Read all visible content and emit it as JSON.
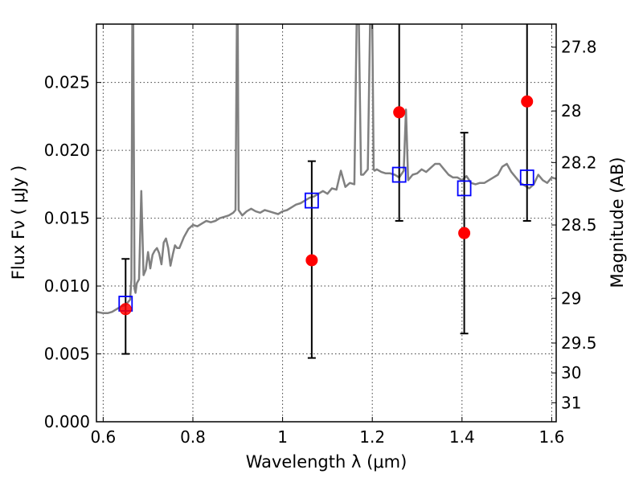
{
  "chart_data": {
    "type": "scatter",
    "xlabel": "Wavelength  λ (μm)",
    "ylabel": "Flux  Fν  ( μJy )",
    "ylabel_right": "Magnitude (AB)",
    "xlim": [
      0.585,
      1.61
    ],
    "ylim": [
      0.0,
      0.0293
    ],
    "grid": true,
    "x_ticks": [
      0.6,
      0.8,
      1.0,
      1.2,
      1.4,
      1.6
    ],
    "x_tick_labels": [
      "0.6",
      "0.8",
      "1",
      "1.2",
      "1.4",
      "1.6"
    ],
    "y_ticks": [
      0.0,
      0.005,
      0.01,
      0.015,
      0.02,
      0.025
    ],
    "y_tick_labels": [
      "0.000",
      "0.005",
      "0.010",
      "0.015",
      "0.020",
      "0.025"
    ],
    "right_ticks": [
      {
        "label": "27.8",
        "flux": 0.0276
      },
      {
        "label": "28",
        "flux": 0.0229
      },
      {
        "label": "28.2",
        "flux": 0.0191
      },
      {
        "label": "28.5",
        "flux": 0.0145
      },
      {
        "label": "29",
        "flux": 0.0091
      },
      {
        "label": "29.5",
        "flux": 0.0058
      },
      {
        "label": "30",
        "flux": 0.0036
      },
      {
        "label": "31",
        "flux": 0.0014
      }
    ],
    "series": [
      {
        "kind": "spectrum-line",
        "color": "#808080",
        "x": [
          0.585,
          0.6,
          0.61,
          0.62,
          0.63,
          0.64,
          0.65,
          0.655,
          0.66,
          0.663,
          0.665,
          0.667,
          0.67,
          0.672,
          0.675,
          0.68,
          0.685,
          0.69,
          0.695,
          0.7,
          0.705,
          0.71,
          0.715,
          0.72,
          0.725,
          0.73,
          0.735,
          0.74,
          0.745,
          0.75,
          0.755,
          0.76,
          0.765,
          0.77,
          0.78,
          0.79,
          0.8,
          0.81,
          0.82,
          0.83,
          0.84,
          0.85,
          0.86,
          0.87,
          0.88,
          0.89,
          0.895,
          0.898,
          0.9,
          0.902,
          0.91,
          0.92,
          0.93,
          0.94,
          0.95,
          0.96,
          0.97,
          0.98,
          0.99,
          1.0,
          1.01,
          1.02,
          1.03,
          1.04,
          1.05,
          1.06,
          1.07,
          1.08,
          1.09,
          1.1,
          1.11,
          1.12,
          1.13,
          1.14,
          1.15,
          1.16,
          1.165,
          1.17,
          1.175,
          1.18,
          1.19,
          1.195,
          1.2,
          1.203,
          1.205,
          1.21,
          1.22,
          1.23,
          1.24,
          1.25,
          1.26,
          1.27,
          1.275,
          1.28,
          1.29,
          1.3,
          1.31,
          1.32,
          1.33,
          1.34,
          1.35,
          1.36,
          1.37,
          1.38,
          1.39,
          1.4,
          1.41,
          1.42,
          1.43,
          1.44,
          1.45,
          1.46,
          1.47,
          1.48,
          1.49,
          1.5,
          1.51,
          1.52,
          1.53,
          1.54,
          1.55,
          1.56,
          1.57,
          1.58,
          1.59,
          1.6,
          1.61
        ],
        "y": [
          0.0081,
          0.008,
          0.008,
          0.0081,
          0.0083,
          0.0085,
          0.0086,
          0.0088,
          0.009,
          0.0105,
          0.0293,
          0.0293,
          0.0098,
          0.0095,
          0.0102,
          0.0105,
          0.017,
          0.0108,
          0.0112,
          0.0125,
          0.0113,
          0.0123,
          0.0126,
          0.0128,
          0.0124,
          0.0116,
          0.0132,
          0.0135,
          0.0128,
          0.0115,
          0.0123,
          0.013,
          0.0128,
          0.0128,
          0.0136,
          0.0142,
          0.0145,
          0.0144,
          0.0146,
          0.0148,
          0.0147,
          0.0148,
          0.015,
          0.0151,
          0.0152,
          0.0154,
          0.0156,
          0.0293,
          0.0293,
          0.0156,
          0.0152,
          0.0155,
          0.0157,
          0.0155,
          0.0154,
          0.0156,
          0.0155,
          0.0154,
          0.0153,
          0.0155,
          0.0156,
          0.0158,
          0.016,
          0.0161,
          0.0163,
          0.0165,
          0.0166,
          0.0168,
          0.017,
          0.0168,
          0.0172,
          0.0171,
          0.0185,
          0.0173,
          0.0176,
          0.0175,
          0.0293,
          0.0293,
          0.0182,
          0.0182,
          0.0186,
          0.0293,
          0.0293,
          0.0186,
          0.0185,
          0.0186,
          0.0184,
          0.0183,
          0.0183,
          0.0182,
          0.018,
          0.0185,
          0.023,
          0.0178,
          0.0182,
          0.0183,
          0.0186,
          0.0184,
          0.0187,
          0.019,
          0.019,
          0.0186,
          0.0182,
          0.018,
          0.018,
          0.0178,
          0.0181,
          0.0176,
          0.0175,
          0.0176,
          0.0176,
          0.0178,
          0.018,
          0.0182,
          0.0188,
          0.019,
          0.0184,
          0.018,
          0.0176,
          0.0174,
          0.0172,
          0.0175,
          0.0182,
          0.0178,
          0.0176,
          0.018,
          0.0179
        ]
      },
      {
        "kind": "observed",
        "marker": "circle",
        "color": "#ff0000",
        "x": [
          0.65,
          1.065,
          1.26,
          1.405,
          1.545
        ],
        "y": [
          0.0083,
          0.0119,
          0.0228,
          0.0139,
          0.0236
        ],
        "yerr_low": [
          0.005,
          0.0047,
          0.0148,
          0.0065,
          0.0148
        ],
        "yerr_high": [
          0.012,
          0.0192,
          0.0293,
          0.0213,
          0.0293
        ]
      },
      {
        "kind": "model",
        "marker": "square",
        "color": "#0000ff",
        "x": [
          0.65,
          1.065,
          1.26,
          1.405,
          1.545
        ],
        "y": [
          0.0087,
          0.0163,
          0.0182,
          0.0172,
          0.018
        ]
      }
    ]
  }
}
